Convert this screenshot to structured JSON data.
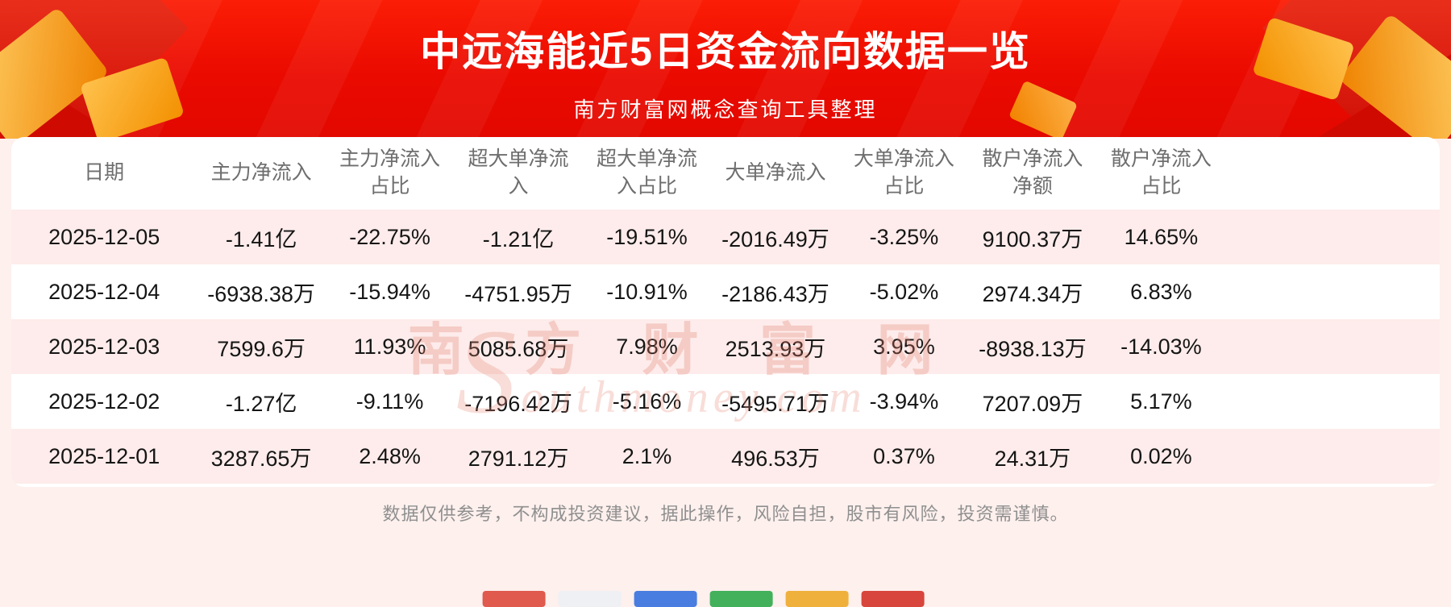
{
  "colors": {
    "brand_red": "#ea0a00",
    "stripe_pink": "#fdeceb",
    "gold_accent": "#f39000"
  },
  "banner": {
    "title": "中远海能近5日资金流向数据一览",
    "subtitle": "南方财富网概念查询工具整理"
  },
  "chart_data": {
    "type": "table",
    "title": "中远海能近5日资金流向数据一览",
    "columns": [
      "日期",
      "主力净流入",
      "主力净流入占比",
      "超大单净流入",
      "超大单净流入占比",
      "大单净流入",
      "大单净流入占比",
      "散户净流入净额",
      "散户净流入占比"
    ],
    "rows": [
      [
        "2025-12-05",
        "-1.41亿",
        "-22.75%",
        "-1.21亿",
        "-19.51%",
        "-2016.49万",
        "-3.25%",
        "9100.37万",
        "14.65%"
      ],
      [
        "2025-12-04",
        "-6938.38万",
        "-15.94%",
        "-4751.95万",
        "-10.91%",
        "-2186.43万",
        "-5.02%",
        "2974.34万",
        "6.83%"
      ],
      [
        "2025-12-03",
        "7599.6万",
        "11.93%",
        "5085.68万",
        "7.98%",
        "2513.93万",
        "3.95%",
        "-8938.13万",
        "-14.03%"
      ],
      [
        "2025-12-02",
        "-1.27亿",
        "-9.11%",
        "-7196.42万",
        "-5.16%",
        "-5495.71万",
        "-3.94%",
        "7207.09万",
        "5.17%"
      ],
      [
        "2025-12-01",
        "3287.65万",
        "2.48%",
        "2791.12万",
        "2.1%",
        "496.53万",
        "0.37%",
        "24.31万",
        "0.02%"
      ]
    ]
  },
  "watermark": {
    "cn": "南 方 财 富 网",
    "en": "Southmoney.com"
  },
  "footer": {
    "disclaimer": "数据仅供参考，不构成投资建议，据此操作，风险自担，股市有风险，投资需谨慎。"
  }
}
